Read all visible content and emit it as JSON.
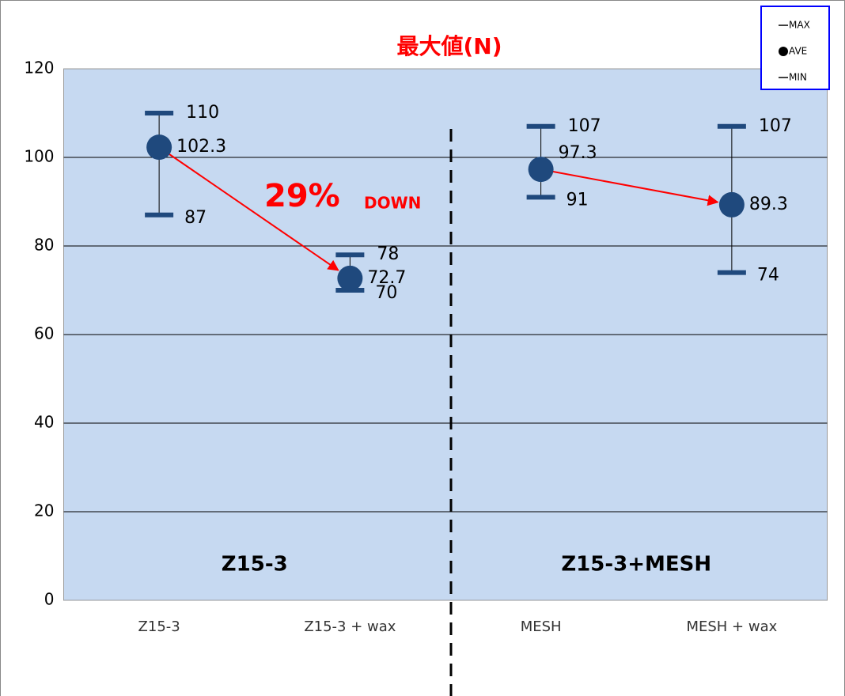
{
  "chart_data": {
    "type": "errorbar",
    "title": "最大値(N)",
    "categories": [
      "Z15-3",
      "Z15-3 + wax",
      "MESH",
      "MESH + wax"
    ],
    "series": [
      {
        "name": "MAX",
        "color": "#1f497d",
        "values": [
          110,
          78,
          107,
          107
        ]
      },
      {
        "name": "AVE",
        "color": "#1f497d",
        "values": [
          102.3,
          72.7,
          97.3,
          89.3
        ]
      },
      {
        "name": "MIN",
        "color": "#1f497d",
        "values": [
          87,
          70,
          91,
          74
        ]
      }
    ],
    "ylim": [
      0,
      120
    ],
    "yticks": [
      0,
      20,
      40,
      60,
      80,
      100,
      120
    ],
    "grid": true,
    "legend": "top-right",
    "annotations": [
      "29%",
      "DOWN"
    ],
    "group_labels": [
      "Z15-3",
      "Z15-3+MESH"
    ],
    "arrow_color": "#ff0000"
  }
}
